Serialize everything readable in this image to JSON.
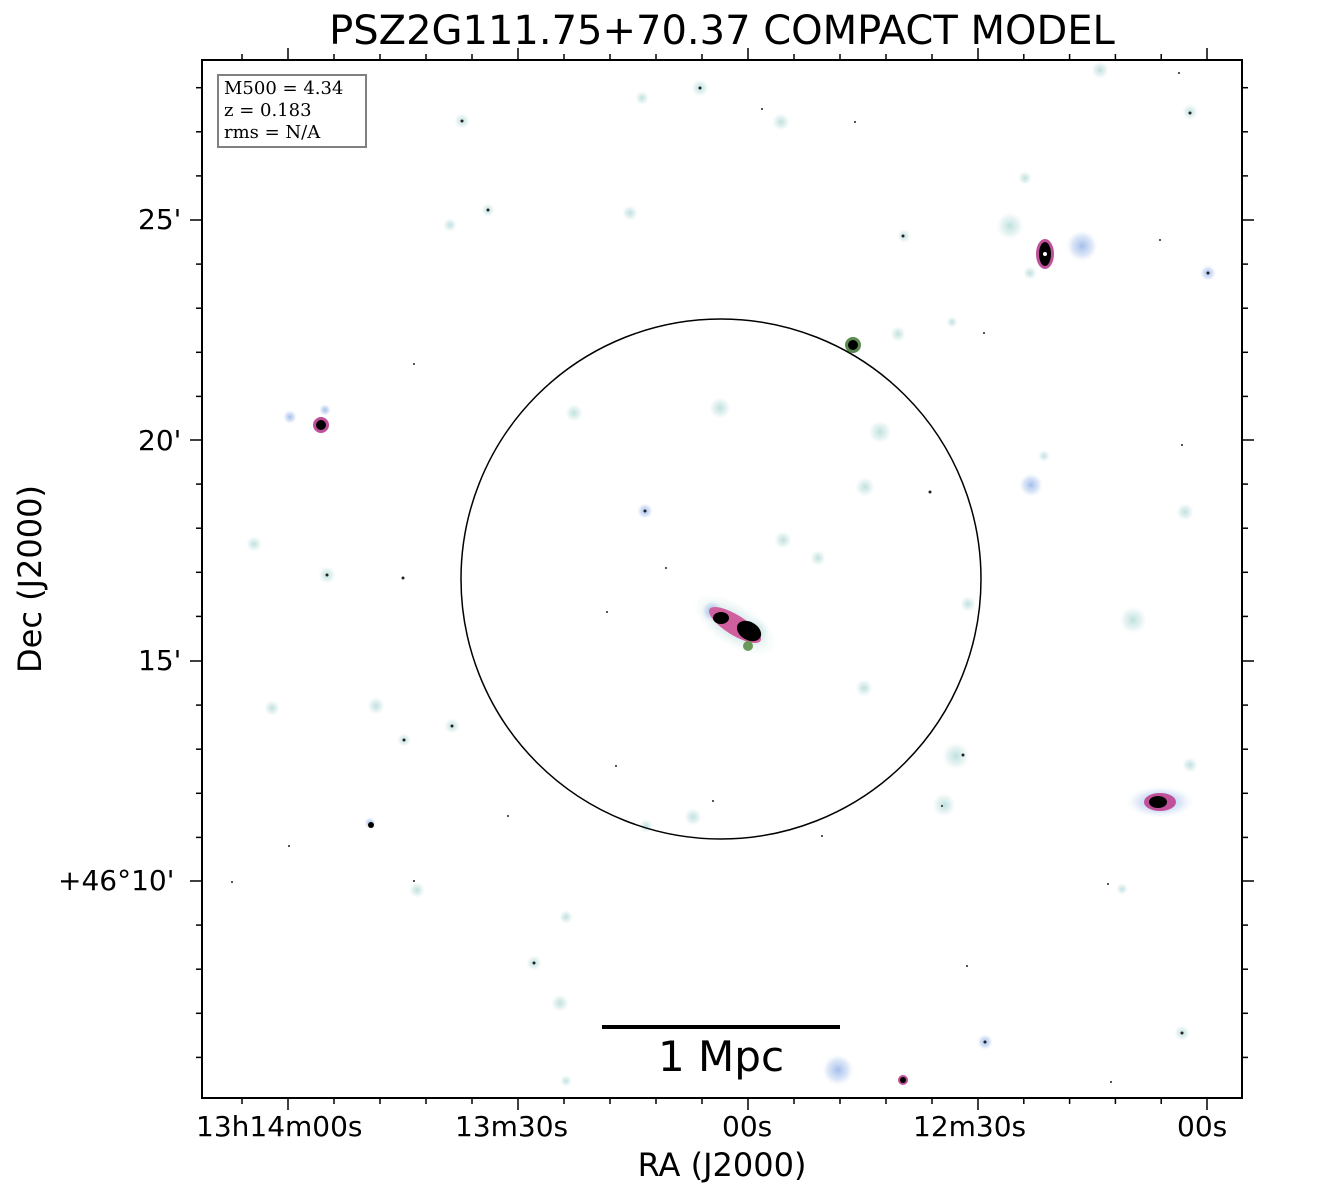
{
  "figure": {
    "title": "PSZ2G111.75+70.37 COMPACT MODEL",
    "xlabel": "RA (J2000)",
    "ylabel": "Dec (J2000)",
    "info_box": {
      "mass": "M500 = 4.34",
      "redshift": "z = 0.183",
      "rms": "rms = N/A"
    },
    "scale_bar": {
      "label": "1 Mpc"
    },
    "x_ticks": [
      "13h14m00s",
      "13m30s",
      "00s",
      "12m30s",
      "00s"
    ],
    "y_ticks": [
      "25'",
      "20'",
      "15'",
      "+46°10'"
    ],
    "colormap": "cubehelix-like light background with blue/magenta/black compact sources",
    "colors": {
      "frame": "#000000",
      "source_halo": "#b9dde0",
      "source_core": "#000000",
      "source_edge": "#c0509a",
      "blue_halo": "#a9c4ee"
    }
  }
}
